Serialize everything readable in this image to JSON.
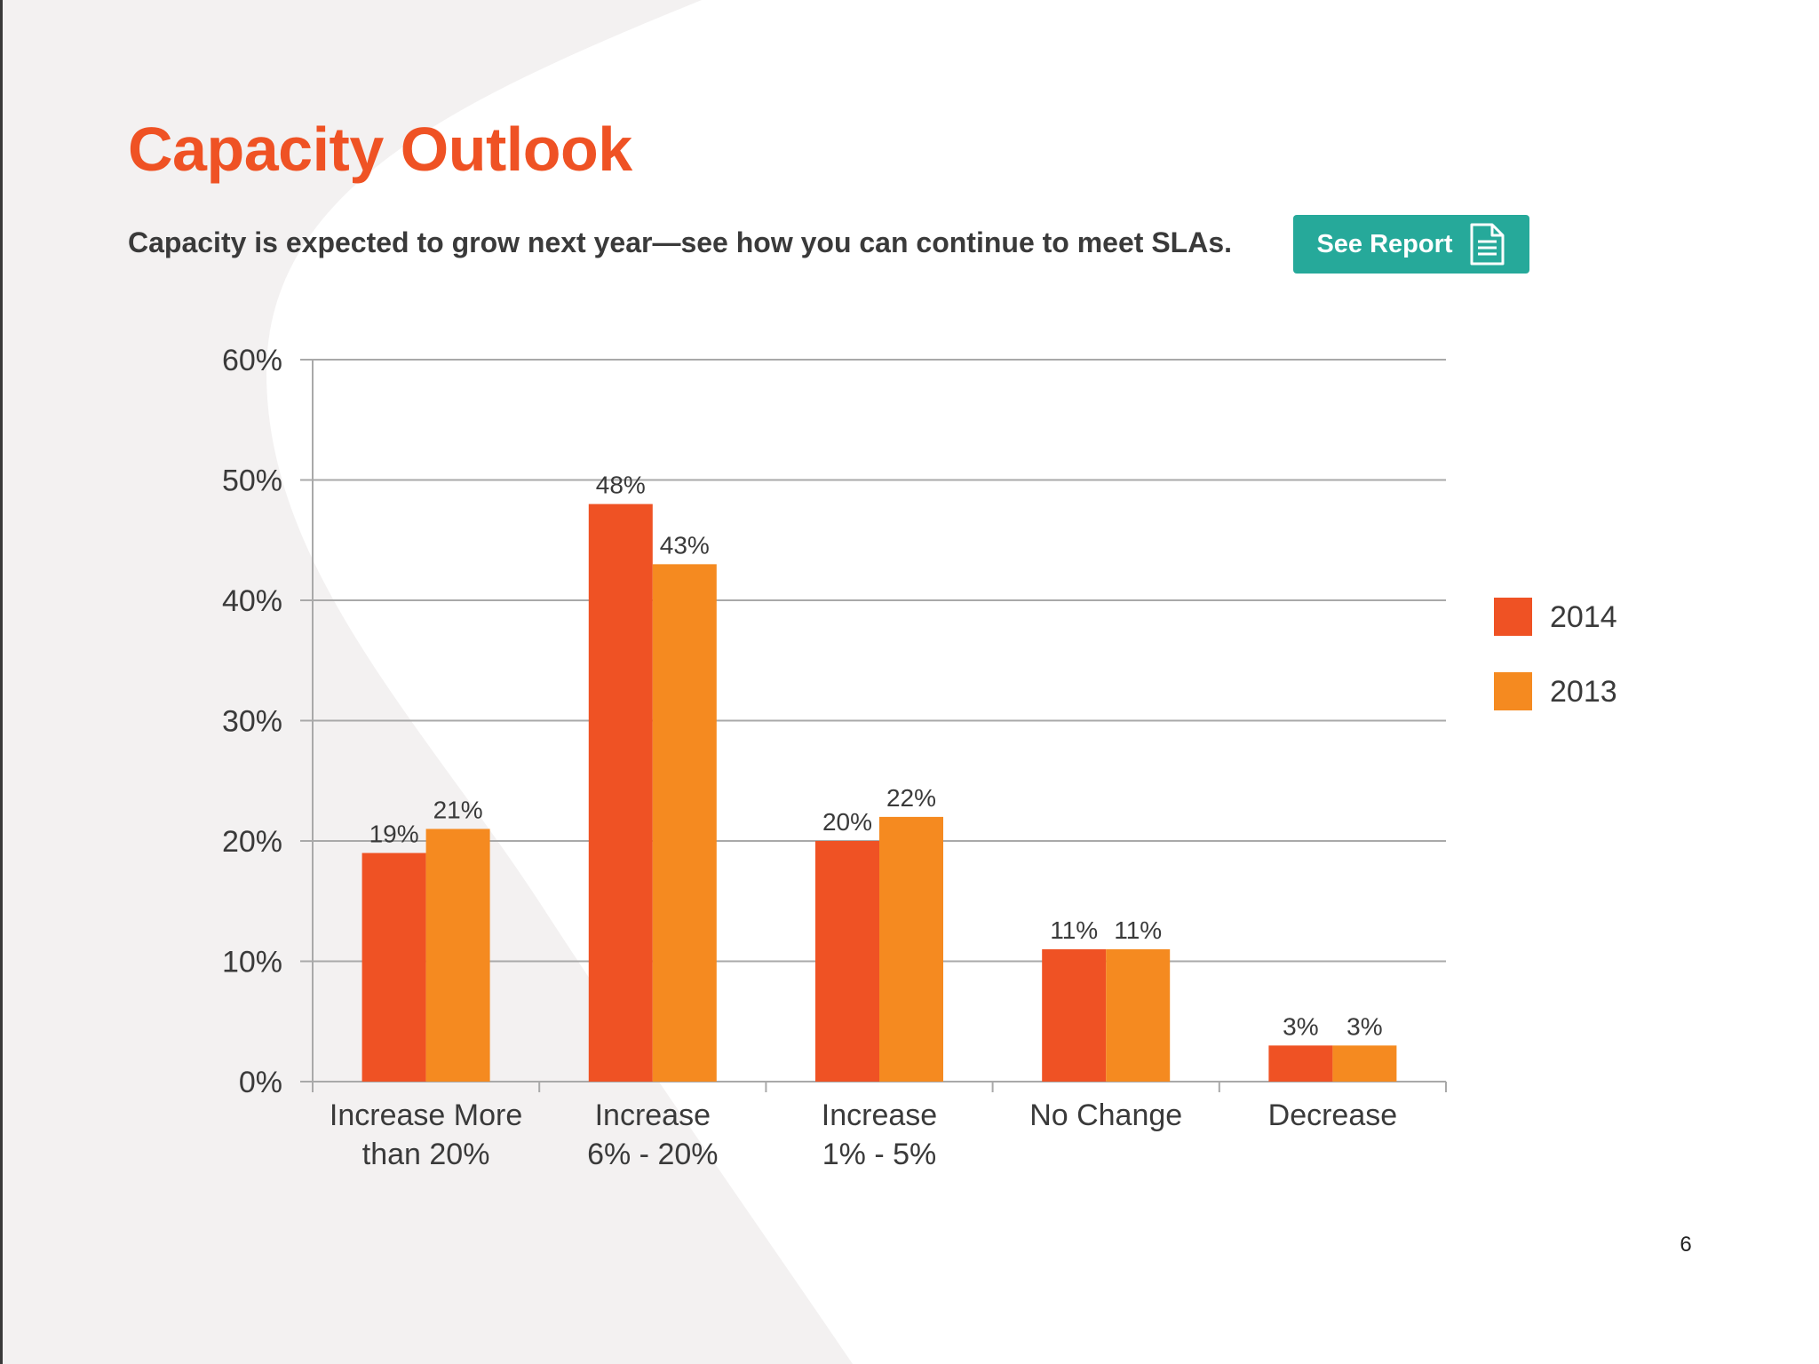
{
  "page": {
    "title": "Capacity Outlook",
    "subtitle": "Capacity is expected to grow next year—see how you can continue to meet SLAs.",
    "button_label": "See Report",
    "button_icon": "document-icon",
    "page_number": "6"
  },
  "colors": {
    "title": "#ef5224",
    "button": "#26a99a",
    "series_2014": "#ef5224",
    "series_2013": "#f58a20",
    "background_shape": "#f3f1f1"
  },
  "chart_data": {
    "type": "bar",
    "categories": [
      [
        "Increase More",
        "than 20%"
      ],
      [
        "Increase",
        "6% - 20%"
      ],
      [
        "Increase",
        "1% - 5%"
      ],
      [
        "No Change"
      ],
      [
        "Decrease"
      ]
    ],
    "series": [
      {
        "name": "2014",
        "color": "#ef5224",
        "values": [
          19,
          48,
          20,
          11,
          3
        ],
        "labels": [
          "19%",
          "48%",
          "20%",
          "11%",
          "3%"
        ]
      },
      {
        "name": "2013",
        "color": "#f58a20",
        "values": [
          21,
          43,
          22,
          11,
          3
        ],
        "labels": [
          "21%",
          "43%",
          "22%",
          "11%",
          "3%"
        ]
      }
    ],
    "y_ticks": [
      0,
      10,
      20,
      30,
      40,
      50,
      60
    ],
    "y_tick_labels": [
      "0%",
      "10%",
      "20%",
      "30%",
      "40%",
      "50%",
      "60%"
    ],
    "ylim": [
      0,
      60
    ],
    "xlabel": "",
    "ylabel": "",
    "grid": true,
    "legend": "right"
  }
}
